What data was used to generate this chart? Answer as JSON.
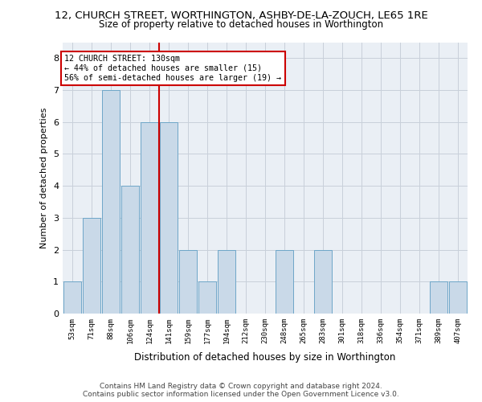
{
  "title_line1": "12, CHURCH STREET, WORTHINGTON, ASHBY-DE-LA-ZOUCH, LE65 1RE",
  "title_line2": "Size of property relative to detached houses in Worthington",
  "xlabel": "Distribution of detached houses by size in Worthington",
  "ylabel": "Number of detached properties",
  "categories": [
    "53sqm",
    "71sqm",
    "88sqm",
    "106sqm",
    "124sqm",
    "141sqm",
    "159sqm",
    "177sqm",
    "194sqm",
    "212sqm",
    "230sqm",
    "248sqm",
    "265sqm",
    "283sqm",
    "301sqm",
    "318sqm",
    "336sqm",
    "354sqm",
    "371sqm",
    "389sqm",
    "407sqm"
  ],
  "values": [
    1,
    3,
    7,
    4,
    6,
    6,
    2,
    1,
    2,
    0,
    0,
    2,
    0,
    2,
    0,
    0,
    0,
    0,
    0,
    1,
    1
  ],
  "bar_color": "#c9d9e8",
  "bar_edgecolor": "#6ea6c8",
  "vline_x": 4.5,
  "vline_color": "#cc0000",
  "annotation_text": "12 CHURCH STREET: 130sqm\n← 44% of detached houses are smaller (15)\n56% of semi-detached houses are larger (19) →",
  "annotation_box_color": "#cc0000",
  "ylim": [
    0,
    8.5
  ],
  "yticks": [
    0,
    1,
    2,
    3,
    4,
    5,
    6,
    7,
    8
  ],
  "grid_color": "#c8d0da",
  "footnote": "Contains HM Land Registry data © Crown copyright and database right 2024.\nContains public sector information licensed under the Open Government Licence v3.0.",
  "background_color": "#eaeff5"
}
